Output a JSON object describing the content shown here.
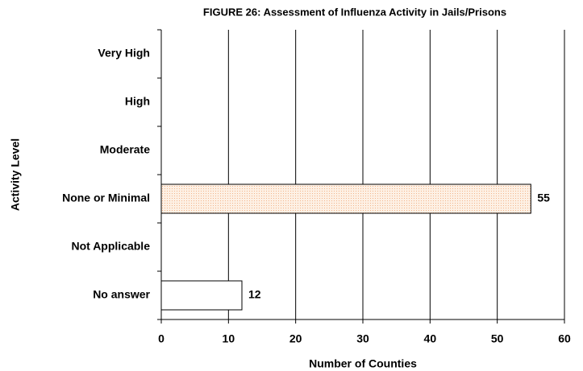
{
  "chart_data": {
    "type": "hbar",
    "title": "FIGURE 26: Assessment of Influenza Activity in Jails/Prisons",
    "x_label": "Number of Counties",
    "y_label": "Activity Level",
    "categories": [
      "Very High",
      "High",
      "Moderate",
      "None or Minimal",
      "Not Applicable",
      "No answer"
    ],
    "values": [
      0,
      0,
      0,
      55,
      0,
      12
    ],
    "colors": [
      "#fbe3cf",
      "#fbe3cf",
      "#fbe3cf",
      "#fbe3cf",
      "#ffffff",
      "#ffffff"
    ],
    "xlim": [
      0,
      60
    ],
    "xticks": [
      0,
      10,
      20,
      30,
      40,
      50,
      60
    ],
    "grid": true
  }
}
